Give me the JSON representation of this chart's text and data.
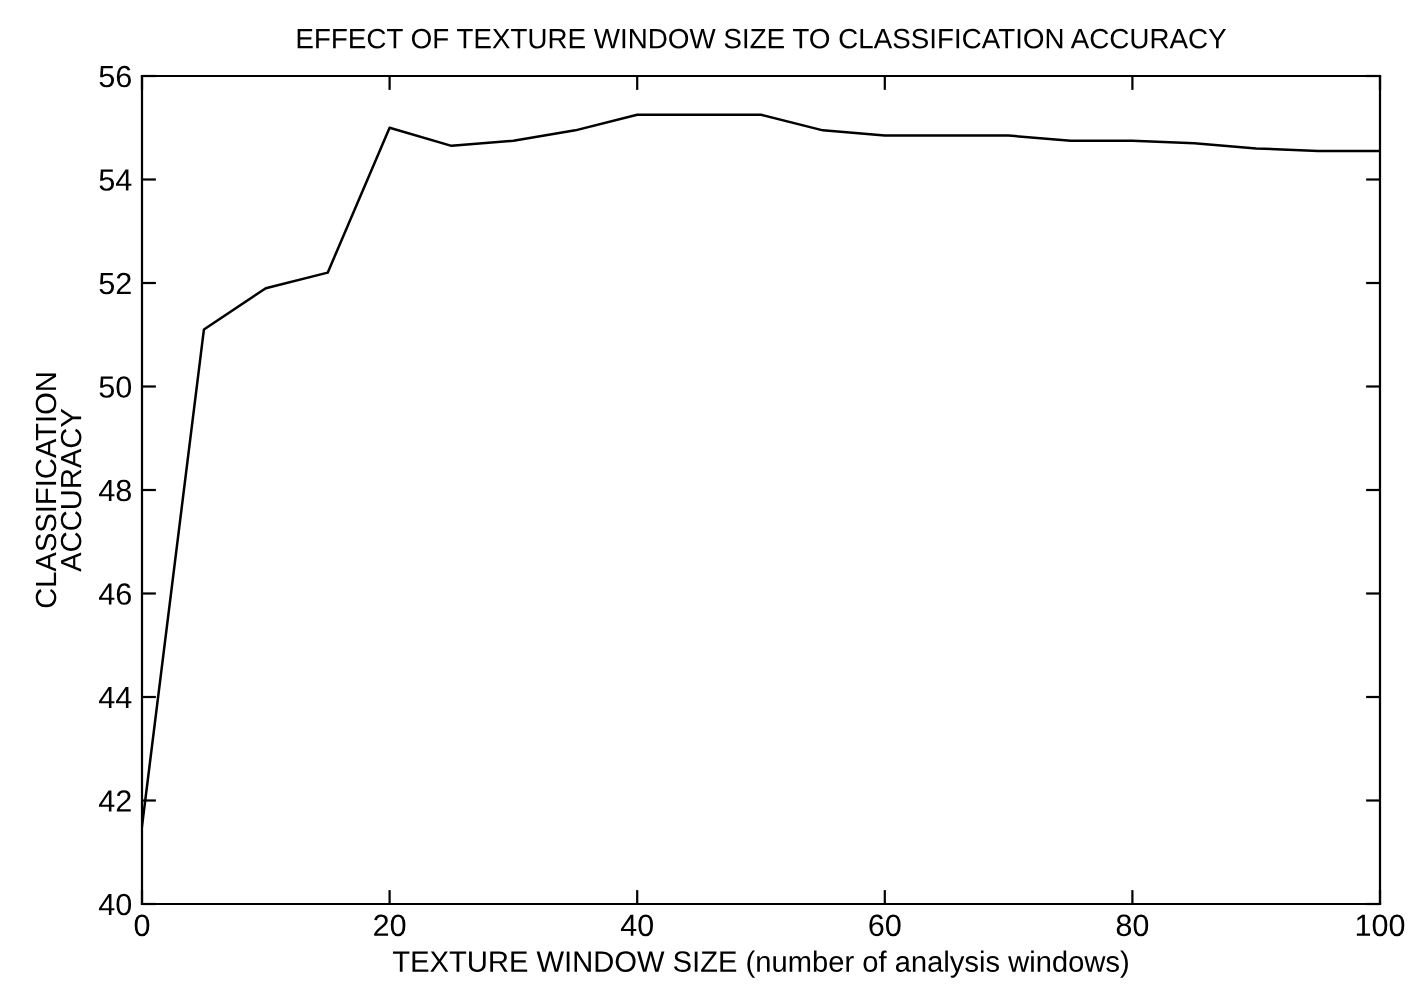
{
  "chart_data": {
    "type": "line",
    "title": "EFFECT OF TEXTURE WINDOW SIZE TO CLASSIFICATION ACCURACY",
    "xlabel": "TEXTURE WINDOW SIZE (number of analysis windows)",
    "ylabel": "CLASSIFICATION\nACCURACY",
    "x": [
      0,
      5,
      10,
      15,
      20,
      25,
      30,
      35,
      40,
      45,
      50,
      55,
      60,
      65,
      70,
      75,
      80,
      85,
      90,
      95,
      100
    ],
    "series": [
      {
        "color": "#000000",
        "values": [
          41.5,
          51.1,
          51.9,
          52.2,
          55.0,
          54.65,
          54.75,
          54.95,
          55.25,
          55.25,
          55.25,
          54.95,
          54.85,
          54.85,
          54.85,
          54.75,
          54.75,
          54.7,
          54.6,
          54.55,
          54.55
        ]
      }
    ],
    "xlim": [
      0,
      100
    ],
    "xticks": [
      0,
      20,
      40,
      60,
      80,
      100
    ],
    "ylim": [
      40,
      56
    ],
    "yticks": [
      40,
      42,
      44,
      46,
      48,
      50,
      52,
      54,
      56
    ],
    "grid": false,
    "legend": false,
    "marker": "none",
    "line_style": "solid"
  }
}
